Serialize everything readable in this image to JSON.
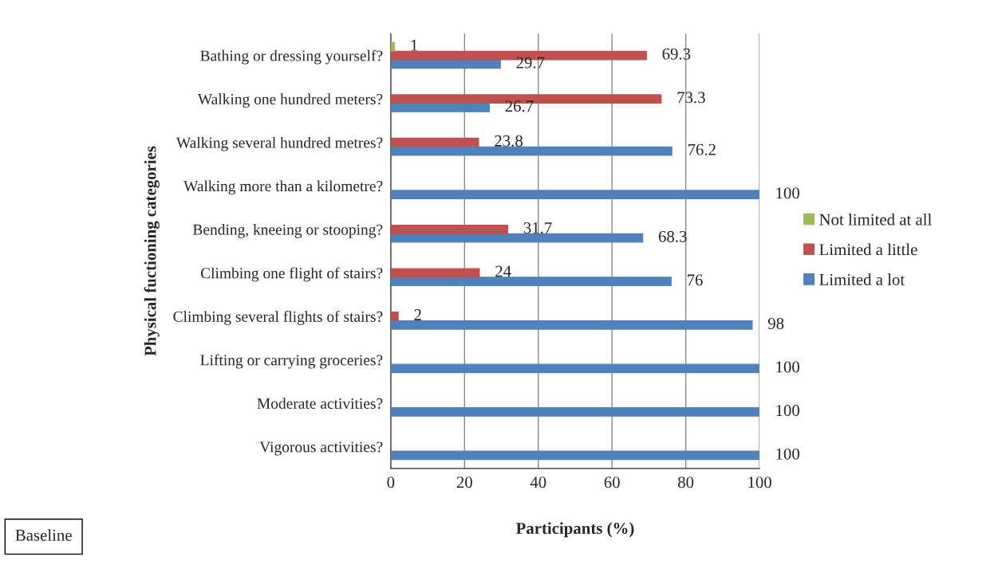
{
  "chart_data": {
    "type": "bar",
    "orientation": "horizontal",
    "categories": [
      "Bathing or dressing yourself?",
      "Walking one hundred meters?",
      "Walking several hundred metres?",
      "Walking more than a kilometre?",
      "Bending, kneeing or stooping?",
      "Climbing one flight of stairs?",
      "Climbing several flights of stairs?",
      "Lifting or carrying groceries?",
      "Moderate activities?",
      "Vigorous activities?"
    ],
    "series": [
      {
        "name": "Limited a lot",
        "color": "#4f81bd",
        "values": [
          29.7,
          26.7,
          76.2,
          100,
          68.3,
          76,
          98,
          100,
          100,
          100
        ]
      },
      {
        "name": "Limited a little",
        "color": "#c0504d",
        "values": [
          69.3,
          73.3,
          23.8,
          null,
          31.7,
          24,
          2,
          null,
          null,
          null
        ]
      },
      {
        "name": "Not limited at all",
        "color": "#9bbb59",
        "values": [
          1,
          null,
          null,
          null,
          null,
          null,
          null,
          null,
          null,
          null
        ]
      }
    ],
    "xlabel": "Participants (%)",
    "ylabel": "Physical fuctioning categories",
    "xlim": [
      0,
      100
    ],
    "xticks": [
      0,
      20,
      40,
      60,
      80,
      100
    ],
    "grid": "x",
    "legend": "right",
    "data_labels": true,
    "annotations": [
      "Baseline"
    ]
  }
}
